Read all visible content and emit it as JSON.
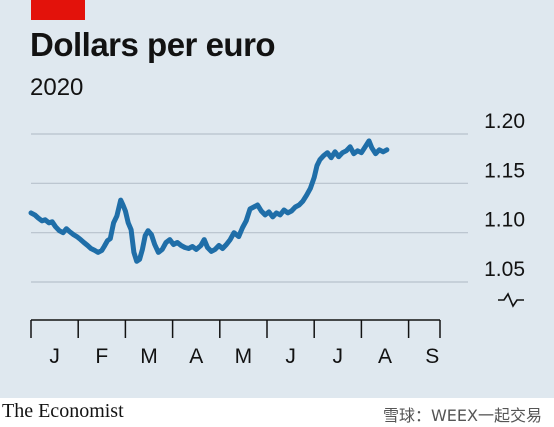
{
  "header": {
    "title": "Dollars per euro",
    "subtitle": "2020"
  },
  "footer": {
    "source": "The Economist",
    "watermark": "雪球：WEEX一起交易"
  },
  "colors": {
    "background": "#dfe8ef",
    "line": "#1f6ea8",
    "grid": "#b7c2cc",
    "accent_red": "#e3120b",
    "text": "#121212"
  },
  "chart_data": {
    "type": "line",
    "title": "Dollars per euro",
    "subtitle": "2020",
    "xlabel": "",
    "ylabel": "",
    "ylim": [
      1.0,
      1.2
    ],
    "yticks": [
      1.05,
      1.1,
      1.15,
      1.2
    ],
    "ytick_labels": [
      "1.05",
      "1.10",
      "1.15",
      "1.20"
    ],
    "y_axis_break": true,
    "y_axis_side": "right",
    "grid": true,
    "x_tick_labels": [
      "J",
      "F",
      "M",
      "A",
      "M",
      "J",
      "J",
      "A",
      "S"
    ],
    "xlim": [
      0,
      8.67
    ],
    "series": [
      {
        "values": [
          [
            0.0,
            1.12
          ],
          [
            0.08,
            1.118
          ],
          [
            0.15,
            1.115
          ],
          [
            0.23,
            1.112
          ],
          [
            0.3,
            1.113
          ],
          [
            0.38,
            1.11
          ],
          [
            0.45,
            1.111
          ],
          [
            0.52,
            1.106
          ],
          [
            0.6,
            1.102
          ],
          [
            0.68,
            1.1
          ],
          [
            0.75,
            1.104
          ],
          [
            0.82,
            1.101
          ],
          [
            0.9,
            1.098
          ],
          [
            0.97,
            1.096
          ],
          [
            1.05,
            1.093
          ],
          [
            1.12,
            1.09
          ],
          [
            1.2,
            1.087
          ],
          [
            1.27,
            1.084
          ],
          [
            1.35,
            1.082
          ],
          [
            1.42,
            1.08
          ],
          [
            1.5,
            1.082
          ],
          [
            1.55,
            1.086
          ],
          [
            1.62,
            1.092
          ],
          [
            1.68,
            1.094
          ],
          [
            1.75,
            1.11
          ],
          [
            1.82,
            1.117
          ],
          [
            1.9,
            1.133
          ],
          [
            1.95,
            1.128
          ],
          [
            2.0,
            1.122
          ],
          [
            2.06,
            1.11
          ],
          [
            2.12,
            1.103
          ],
          [
            2.18,
            1.08
          ],
          [
            2.24,
            1.071
          ],
          [
            2.3,
            1.073
          ],
          [
            2.36,
            1.083
          ],
          [
            2.42,
            1.097
          ],
          [
            2.48,
            1.102
          ],
          [
            2.55,
            1.098
          ],
          [
            2.62,
            1.088
          ],
          [
            2.7,
            1.08
          ],
          [
            2.78,
            1.083
          ],
          [
            2.86,
            1.09
          ],
          [
            2.94,
            1.093
          ],
          [
            3.02,
            1.088
          ],
          [
            3.1,
            1.09
          ],
          [
            3.18,
            1.087
          ],
          [
            3.26,
            1.085
          ],
          [
            3.34,
            1.084
          ],
          [
            3.42,
            1.086
          ],
          [
            3.5,
            1.083
          ],
          [
            3.6,
            1.087
          ],
          [
            3.67,
            1.093
          ],
          [
            3.74,
            1.085
          ],
          [
            3.82,
            1.081
          ],
          [
            3.9,
            1.083
          ],
          [
            3.98,
            1.087
          ],
          [
            4.06,
            1.084
          ],
          [
            4.14,
            1.088
          ],
          [
            4.22,
            1.093
          ],
          [
            4.3,
            1.1
          ],
          [
            4.4,
            1.096
          ],
          [
            4.48,
            1.105
          ],
          [
            4.56,
            1.112
          ],
          [
            4.64,
            1.124
          ],
          [
            4.72,
            1.126
          ],
          [
            4.8,
            1.128
          ],
          [
            4.88,
            1.122
          ],
          [
            4.96,
            1.118
          ],
          [
            5.04,
            1.121
          ],
          [
            5.12,
            1.116
          ],
          [
            5.2,
            1.12
          ],
          [
            5.28,
            1.118
          ],
          [
            5.36,
            1.123
          ],
          [
            5.44,
            1.12
          ],
          [
            5.52,
            1.122
          ],
          [
            5.6,
            1.126
          ],
          [
            5.68,
            1.128
          ],
          [
            5.76,
            1.132
          ],
          [
            5.84,
            1.138
          ],
          [
            5.92,
            1.145
          ],
          [
            6.0,
            1.156
          ],
          [
            6.06,
            1.168
          ],
          [
            6.12,
            1.174
          ],
          [
            6.2,
            1.178
          ],
          [
            6.28,
            1.181
          ],
          [
            6.36,
            1.176
          ],
          [
            6.44,
            1.182
          ],
          [
            6.52,
            1.177
          ],
          [
            6.6,
            1.181
          ],
          [
            6.68,
            1.183
          ],
          [
            6.76,
            1.187
          ],
          [
            6.84,
            1.18
          ],
          [
            6.92,
            1.183
          ],
          [
            7.0,
            1.181
          ],
          [
            7.08,
            1.187
          ],
          [
            7.16,
            1.193
          ],
          [
            7.22,
            1.186
          ],
          [
            7.3,
            1.18
          ],
          [
            7.38,
            1.184
          ],
          [
            7.46,
            1.182
          ],
          [
            7.54,
            1.184
          ]
        ]
      }
    ]
  }
}
